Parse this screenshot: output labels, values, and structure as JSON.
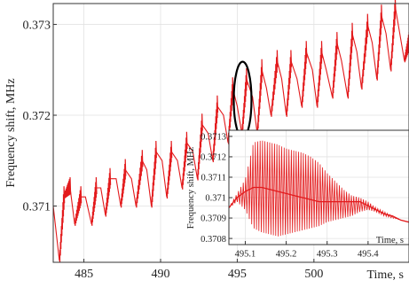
{
  "chart_data": [
    {
      "type": "line",
      "title": "",
      "xlabel": "Time, s",
      "ylabel": "Frequency shift, MHz",
      "xlim": [
        483.0,
        506.2
      ],
      "ylim": [
        0.37038,
        0.37323
      ],
      "xticks": [
        485,
        490,
        495,
        500
      ],
      "xtick_labels": [
        "485",
        "490",
        "495",
        "500"
      ],
      "yticks": [
        0.371,
        0.372,
        0.373
      ],
      "ytick_labels": [
        "0.371",
        "0.372",
        "0.373"
      ],
      "grid": true,
      "line_color": "#e31a1c",
      "series": [
        {
          "x": [
            483.0,
            483.4,
            483.7,
            484.1,
            484.4,
            484.8,
            485.1,
            485.5,
            485.8,
            486.1,
            486.4,
            486.7,
            487.1,
            487.4,
            487.7,
            488.1,
            488.4,
            488.8,
            489.1,
            489.4,
            489.7,
            490.1,
            490.4,
            490.7,
            491.1,
            491.4,
            491.7,
            492.1,
            492.4,
            492.7,
            493.1,
            493.4,
            493.7,
            494.1,
            494.4,
            494.7,
            495.0,
            495.3,
            495.6,
            496.0,
            496.3,
            496.6,
            496.9,
            497.2,
            497.6,
            497.9,
            498.2,
            498.5,
            498.9,
            499.2,
            499.5,
            499.9,
            500.2,
            500.5,
            500.8,
            501.2,
            501.5,
            501.8,
            502.2,
            502.5,
            502.8,
            503.1,
            503.5,
            503.8,
            504.1,
            504.4,
            504.7,
            505.0,
            505.3,
            505.6,
            505.9,
            506.2
          ],
          "y": [
            0.371,
            0.3704,
            0.3711,
            0.3712,
            0.3708,
            0.3711,
            0.3711,
            0.3708,
            0.3712,
            0.3712,
            0.3709,
            0.3713,
            0.3713,
            0.371,
            0.3714,
            0.3713,
            0.371,
            0.3715,
            0.3714,
            0.371,
            0.3716,
            0.3715,
            0.3711,
            0.3716,
            0.3715,
            0.3712,
            0.3717,
            0.3716,
            0.3713,
            0.3719,
            0.3718,
            0.3715,
            0.3721,
            0.372,
            0.3717,
            0.3723,
            0.3721,
            0.3718,
            0.3724,
            0.3722,
            0.3718,
            0.3725,
            0.3723,
            0.372,
            0.3726,
            0.3724,
            0.372,
            0.3726,
            0.3724,
            0.3721,
            0.3727,
            0.3725,
            0.3721,
            0.3727,
            0.3725,
            0.3722,
            0.3728,
            0.3726,
            0.3722,
            0.3729,
            0.3727,
            0.3723,
            0.373,
            0.3728,
            0.3724,
            0.3731,
            0.3729,
            0.3725,
            0.3732,
            0.3729,
            0.3726,
            0.3728
          ]
        }
      ],
      "annotations": [
        {
          "type": "ellipse-marker",
          "x": 495.35,
          "y": 0.37217,
          "color": "#000000"
        }
      ]
    },
    {
      "type": "line",
      "title": "",
      "xlabel": "Time, s",
      "ylabel": "Frequency shift, MHz",
      "xlim": [
        495.06,
        495.5
      ],
      "ylim": [
        0.37077,
        0.37133
      ],
      "xticks": [
        495.1,
        495.2,
        495.3,
        495.4
      ],
      "xtick_labels": [
        "495.1",
        "495.2",
        "495.3",
        "495.4"
      ],
      "yticks": [
        0.3708,
        0.3709,
        0.371,
        0.3711,
        0.3712,
        0.3713
      ],
      "ytick_labels": [
        "0.3708",
        "0.3709",
        "0.371",
        "0.3711",
        "0.3712",
        "0.3713"
      ],
      "grid": true,
      "line_color": "#e31a1c",
      "series": [
        {
          "x": [
            495.06,
            495.08,
            495.1,
            495.12,
            495.14,
            495.16,
            495.18,
            495.2,
            495.22,
            495.24,
            495.26,
            495.28,
            495.3,
            495.32,
            495.34,
            495.36,
            495.38,
            495.4,
            495.42,
            495.44,
            495.46,
            495.48,
            495.5
          ],
          "y": [
            0.37095,
            0.371,
            0.37103,
            0.37105,
            0.37105,
            0.37104,
            0.37103,
            0.37102,
            0.37101,
            0.371,
            0.37099,
            0.37098,
            0.37098,
            0.37098,
            0.37098,
            0.37098,
            0.37098,
            0.37096,
            0.37094,
            0.37092,
            0.37091,
            0.37089,
            0.37088
          ],
          "envelope_high": [
            0.37095,
            0.37102,
            0.37109,
            0.37127,
            0.37128,
            0.37127,
            0.37126,
            0.37124,
            0.37123,
            0.37122,
            0.3712,
            0.37117,
            0.37112,
            0.37108,
            0.37104,
            0.37101,
            0.371,
            0.37098,
            0.37095,
            0.37093,
            0.37091,
            0.37089,
            0.37088
          ],
          "envelope_low": [
            0.37095,
            0.37098,
            0.37094,
            0.37085,
            0.37083,
            0.37082,
            0.37081,
            0.37082,
            0.37083,
            0.37084,
            0.37085,
            0.37086,
            0.37088,
            0.37089,
            0.3709,
            0.37091,
            0.37093,
            0.37094,
            0.37093,
            0.37091,
            0.3709,
            0.37089,
            0.37088
          ]
        }
      ]
    }
  ]
}
